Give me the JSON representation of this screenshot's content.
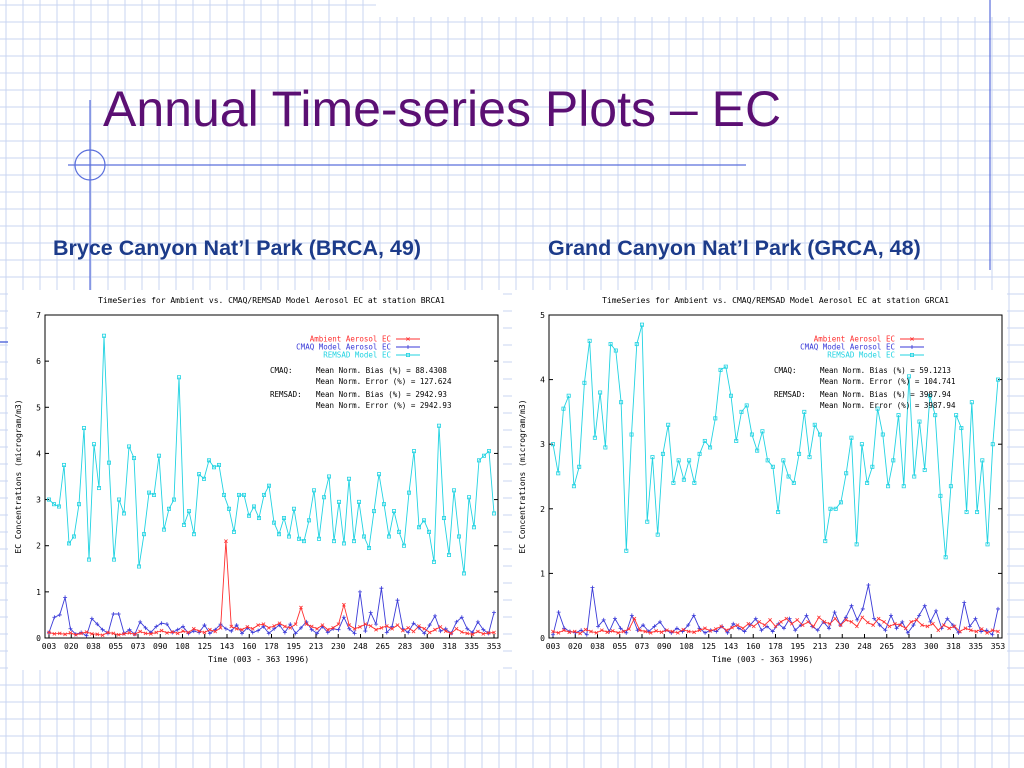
{
  "slide": {
    "title": "Annual Time-series Plots – EC",
    "subtitle_left": "Bryce Canyon Nat’l Park (BRCA, 49)",
    "subtitle_right": "Grand Canyon Nat’l Park (GRCA, 48)",
    "colors": {
      "title": "#5b0f73",
      "subtitle": "#1c3b8a",
      "grid": "#c8d4f2",
      "accent": "#5a6fdc"
    }
  },
  "chart_data": [
    {
      "type": "line",
      "title": "TimeSeries for Ambient vs. CMAQ/REMSAD Model Aerosol EC at station BRCA1",
      "xlabel": "Time    (003 - 363 1996)",
      "ylabel": "EC Concentrations (microgram/m3)",
      "ylim": [
        0,
        7
      ],
      "yticks": [
        "0",
        "1",
        "2",
        "3",
        "4",
        "5",
        "6",
        "7"
      ],
      "xlim": [
        3,
        363
      ],
      "xticks": [
        "003",
        "020",
        "038",
        "055",
        "073",
        "090",
        "108",
        "125",
        "143",
        "160",
        "178",
        "195",
        "213",
        "230",
        "248",
        "265",
        "283",
        "300",
        "318",
        "335",
        "353"
      ],
      "legend_position": "top-right",
      "series": [
        {
          "name": "Ambient Aerosol EC",
          "color": "#ff3030",
          "marker": "cross",
          "values": [
            0.12,
            0.09,
            0.1,
            0.08,
            0.11,
            0.07,
            0.1,
            0.13,
            0.09,
            0.08,
            0.06,
            0.12,
            0.1,
            0.07,
            0.09,
            0.11,
            0.08,
            0.14,
            0.1,
            0.09,
            0.12,
            0.16,
            0.11,
            0.13,
            0.1,
            0.15,
            0.12,
            0.2,
            0.15,
            0.12,
            0.18,
            0.14,
            0.22,
            2.1,
            0.25,
            0.2,
            0.18,
            0.24,
            0.2,
            0.28,
            0.3,
            0.22,
            0.26,
            0.32,
            0.25,
            0.22,
            0.3,
            0.66,
            0.3,
            0.25,
            0.2,
            0.28,
            0.18,
            0.22,
            0.3,
            0.72,
            0.28,
            0.2,
            0.24,
            0.3,
            0.26,
            0.18,
            0.22,
            0.26,
            0.2,
            0.28,
            0.16,
            0.22,
            0.14,
            0.26,
            0.2,
            0.12,
            0.18,
            0.24,
            0.15,
            0.1,
            0.2,
            0.13,
            0.1,
            0.08,
            0.14,
            0.09,
            0.11,
            0.12
          ]
        },
        {
          "name": "CMAQ Model Aerosol EC",
          "color": "#3a3ad8",
          "marker": "plus",
          "values": [
            0.12,
            0.45,
            0.5,
            0.88,
            0.2,
            0.08,
            0.12,
            0.05,
            0.42,
            0.3,
            0.18,
            0.1,
            0.52,
            0.52,
            0.1,
            0.18,
            0.08,
            0.35,
            0.22,
            0.12,
            0.25,
            0.32,
            0.3,
            0.12,
            0.18,
            0.25,
            0.1,
            0.15,
            0.12,
            0.28,
            0.1,
            0.18,
            0.3,
            0.2,
            0.15,
            0.28,
            0.1,
            0.22,
            0.12,
            0.16,
            0.25,
            0.1,
            0.2,
            0.28,
            0.12,
            0.3,
            0.1,
            0.22,
            0.35,
            0.18,
            0.1,
            0.25,
            0.12,
            0.2,
            0.18,
            0.45,
            0.2,
            0.1,
            1.0,
            0.15,
            0.55,
            0.3,
            1.08,
            0.12,
            0.25,
            0.82,
            0.2,
            0.12,
            0.32,
            0.22,
            0.1,
            0.28,
            0.48,
            0.15,
            0.2,
            0.1,
            0.35,
            0.45,
            0.2,
            0.12,
            0.35,
            0.18,
            0.1,
            0.55
          ]
        },
        {
          "name": "REMSAD Model EC",
          "color": "#22d3e2",
          "marker": "square",
          "values": [
            3.0,
            2.9,
            2.85,
            3.75,
            2.05,
            2.2,
            2.9,
            4.55,
            1.7,
            4.2,
            3.25,
            6.55,
            3.8,
            1.7,
            3.0,
            2.7,
            4.15,
            3.9,
            1.55,
            2.25,
            3.15,
            3.1,
            3.95,
            2.35,
            2.8,
            3.0,
            5.65,
            2.45,
            2.75,
            2.25,
            3.55,
            3.45,
            3.85,
            3.7,
            3.75,
            3.1,
            2.8,
            2.3,
            3.1,
            3.1,
            2.65,
            2.85,
            2.6,
            3.1,
            3.3,
            2.5,
            2.25,
            2.6,
            2.2,
            2.8,
            2.15,
            2.1,
            2.55,
            3.2,
            2.15,
            3.05,
            3.5,
            2.1,
            2.95,
            2.05,
            3.45,
            2.1,
            2.95,
            2.2,
            1.95,
            2.75,
            3.55,
            2.9,
            2.2,
            2.75,
            2.3,
            2.0,
            3.15,
            4.05,
            2.4,
            2.55,
            2.3,
            1.65,
            4.6,
            2.6,
            1.8,
            3.2,
            2.2,
            1.4,
            3.05,
            2.4,
            3.85,
            3.95,
            4.05,
            2.7
          ]
        }
      ],
      "stats": [
        {
          "label": "CMAQ:",
          "lines": [
            "Mean Norm. Bias (%) = 88.4308",
            "Mean Norm. Error (%) = 127.624"
          ]
        },
        {
          "label": "REMSAD:",
          "lines": [
            "Mean Norm. Bias (%) = 2942.93",
            "Mean Norm. Error (%) = 2942.93"
          ]
        }
      ]
    },
    {
      "type": "line",
      "title": "TimeSeries for Ambient vs. CMAQ/REMSAD Model Aerosol EC at station GRCA1",
      "xlabel": "Time    (003 - 363 1996)",
      "ylabel": "EC Concentrations (microgram/m3)",
      "ylim": [
        0,
        5
      ],
      "yticks": [
        "0",
        "1",
        "2",
        "3",
        "4",
        "5"
      ],
      "xlim": [
        3,
        363
      ],
      "xticks": [
        "003",
        "020",
        "038",
        "055",
        "073",
        "090",
        "108",
        "125",
        "143",
        "160",
        "178",
        "195",
        "213",
        "230",
        "248",
        "265",
        "283",
        "300",
        "318",
        "335",
        "353"
      ],
      "legend_position": "top-right",
      "series": [
        {
          "name": "Ambient Aerosol EC",
          "color": "#ff3030",
          "marker": "cross",
          "values": [
            0.1,
            0.08,
            0.12,
            0.09,
            0.1,
            0.07,
            0.13,
            0.1,
            0.08,
            0.12,
            0.09,
            0.11,
            0.08,
            0.1,
            0.14,
            0.3,
            0.12,
            0.1,
            0.08,
            0.11,
            0.09,
            0.12,
            0.1,
            0.08,
            0.13,
            0.1,
            0.09,
            0.12,
            0.15,
            0.11,
            0.14,
            0.18,
            0.12,
            0.16,
            0.2,
            0.15,
            0.22,
            0.18,
            0.25,
            0.2,
            0.28,
            0.18,
            0.25,
            0.3,
            0.22,
            0.28,
            0.2,
            0.25,
            0.18,
            0.32,
            0.25,
            0.22,
            0.3,
            0.2,
            0.28,
            0.25,
            0.18,
            0.32,
            0.24,
            0.2,
            0.3,
            0.25,
            0.18,
            0.22,
            0.2,
            0.15,
            0.25,
            0.28,
            0.2,
            0.18,
            0.22,
            0.12,
            0.2,
            0.15,
            0.18,
            0.1,
            0.15,
            0.12,
            0.1,
            0.14,
            0.08,
            0.12,
            0.1
          ]
        },
        {
          "name": "CMAQ Model Aerosol EC",
          "color": "#3a3ad8",
          "marker": "plus",
          "values": [
            0.05,
            0.4,
            0.15,
            0.1,
            0.08,
            0.12,
            0.05,
            0.78,
            0.18,
            0.28,
            0.1,
            0.3,
            0.15,
            0.08,
            0.35,
            0.12,
            0.2,
            0.1,
            0.18,
            0.25,
            0.12,
            0.08,
            0.15,
            0.1,
            0.2,
            0.35,
            0.15,
            0.08,
            0.12,
            0.1,
            0.18,
            0.08,
            0.22,
            0.15,
            0.1,
            0.2,
            0.3,
            0.12,
            0.18,
            0.1,
            0.22,
            0.15,
            0.3,
            0.12,
            0.2,
            0.35,
            0.18,
            0.12,
            0.25,
            0.15,
            0.4,
            0.2,
            0.32,
            0.5,
            0.28,
            0.45,
            0.82,
            0.3,
            0.2,
            0.12,
            0.35,
            0.15,
            0.25,
            0.08,
            0.2,
            0.35,
            0.5,
            0.25,
            0.42,
            0.15,
            0.3,
            0.2,
            0.08,
            0.55,
            0.18,
            0.3,
            0.1,
            0.12,
            0.05,
            0.45
          ]
        },
        {
          "name": "REMSAD Model EC",
          "color": "#22d3e2",
          "marker": "square",
          "values": [
            3.0,
            2.55,
            3.55,
            3.75,
            2.35,
            2.65,
            3.95,
            4.6,
            3.1,
            3.8,
            2.95,
            4.55,
            4.45,
            3.65,
            1.35,
            3.15,
            4.55,
            4.85,
            1.8,
            2.8,
            1.6,
            2.85,
            3.3,
            2.4,
            2.75,
            2.45,
            2.75,
            2.4,
            2.85,
            3.05,
            2.95,
            3.4,
            4.15,
            4.2,
            3.75,
            3.05,
            3.5,
            3.6,
            3.15,
            2.9,
            3.2,
            2.75,
            2.65,
            1.95,
            2.75,
            2.5,
            2.4,
            2.85,
            3.5,
            2.8,
            3.3,
            3.15,
            1.5,
            2.0,
            2.0,
            2.1,
            2.55,
            3.1,
            1.45,
            3.0,
            2.4,
            2.65,
            3.55,
            3.15,
            2.35,
            2.75,
            3.45,
            2.35,
            4.05,
            2.5,
            3.35,
            2.6,
            3.75,
            3.45,
            2.2,
            1.25,
            2.35,
            3.45,
            3.25,
            1.95,
            3.65,
            1.95,
            2.75,
            1.45,
            3.0,
            4.0
          ]
        }
      ],
      "stats": [
        {
          "label": "CMAQ:",
          "lines": [
            "Mean Norm. Bias (%) = 59.1213",
            "Mean Norm. Error (%) = 104.741"
          ]
        },
        {
          "label": "REMSAD:",
          "lines": [
            "Mean Norm. Bias (%) = 3987.94",
            "Mean Norm. Error (%) = 3987.94"
          ]
        }
      ]
    }
  ]
}
